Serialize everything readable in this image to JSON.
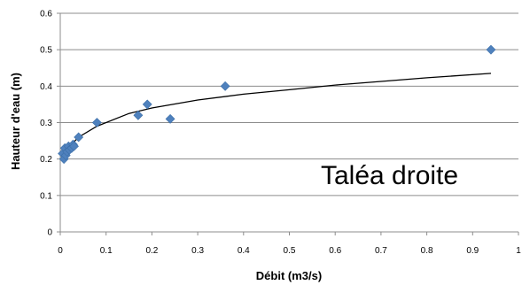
{
  "chart_data": {
    "type": "scatter",
    "title": "",
    "xlabel": "Débit (m3/s)",
    "ylabel": "Hauteur d'eau (m)",
    "xlim": [
      0,
      1
    ],
    "ylim": [
      0,
      0.6
    ],
    "xticks": [
      "0",
      "0.1",
      "0.2",
      "0.3",
      "0.4",
      "0.5",
      "0.6",
      "0.7",
      "0.8",
      "0.9",
      "1"
    ],
    "yticks": [
      "0",
      "0.1",
      "0.2",
      "0.3",
      "0.4",
      "0.5",
      "0.6"
    ],
    "grid": "horizontal",
    "legend": "none",
    "annotation": "Taléa droite",
    "marker_color": "#4F81BD",
    "trendline_color": "#000000",
    "series": [
      {
        "points": [
          {
            "x": 0.005,
            "y": 0.215
          },
          {
            "x": 0.008,
            "y": 0.2
          },
          {
            "x": 0.01,
            "y": 0.23
          },
          {
            "x": 0.012,
            "y": 0.21
          },
          {
            "x": 0.015,
            "y": 0.22
          },
          {
            "x": 0.018,
            "y": 0.235
          },
          {
            "x": 0.02,
            "y": 0.225
          },
          {
            "x": 0.025,
            "y": 0.23
          },
          {
            "x": 0.028,
            "y": 0.24
          },
          {
            "x": 0.03,
            "y": 0.235
          },
          {
            "x": 0.04,
            "y": 0.26
          },
          {
            "x": 0.08,
            "y": 0.3
          },
          {
            "x": 0.17,
            "y": 0.32
          },
          {
            "x": 0.19,
            "y": 0.35
          },
          {
            "x": 0.24,
            "y": 0.31
          },
          {
            "x": 0.36,
            "y": 0.4
          },
          {
            "x": 0.94,
            "y": 0.5
          }
        ]
      }
    ],
    "trendline": {
      "type": "power",
      "points": [
        {
          "x": 0.005,
          "y": 0.197
        },
        {
          "x": 0.01,
          "y": 0.215
        },
        {
          "x": 0.02,
          "y": 0.235
        },
        {
          "x": 0.04,
          "y": 0.26
        },
        {
          "x": 0.08,
          "y": 0.29
        },
        {
          "x": 0.15,
          "y": 0.325
        },
        {
          "x": 0.2,
          "y": 0.34
        },
        {
          "x": 0.3,
          "y": 0.362
        },
        {
          "x": 0.4,
          "y": 0.378
        },
        {
          "x": 0.5,
          "y": 0.39
        },
        {
          "x": 0.6,
          "y": 0.403
        },
        {
          "x": 0.7,
          "y": 0.413
        },
        {
          "x": 0.8,
          "y": 0.423
        },
        {
          "x": 0.94,
          "y": 0.435
        }
      ]
    }
  }
}
